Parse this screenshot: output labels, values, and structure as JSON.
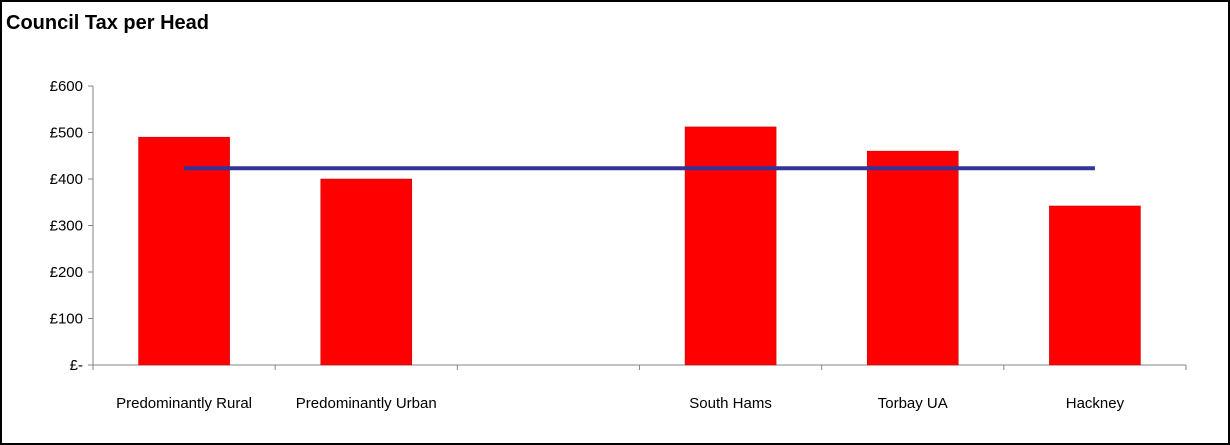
{
  "chart_data": {
    "type": "bar",
    "title": "Council Tax per Head",
    "categories": [
      "Predominantly Rural",
      "Predominantly Urban",
      "",
      "South Hams",
      "Torbay UA",
      "Hackney"
    ],
    "series": [
      {
        "type": "bar",
        "values": [
          490,
          400,
          null,
          512,
          460,
          342
        ],
        "color": "#ff0000"
      },
      {
        "type": "line",
        "values": [
          423,
          423,
          423,
          423,
          423,
          423
        ],
        "color": "#333399"
      }
    ],
    "yticks": [
      "£-",
      "£100",
      "£200",
      "£300",
      "£400",
      "£500",
      "£600"
    ],
    "ylim": [
      0,
      600
    ],
    "xlabel": "",
    "ylabel": "",
    "grid": false,
    "legend": "none"
  }
}
